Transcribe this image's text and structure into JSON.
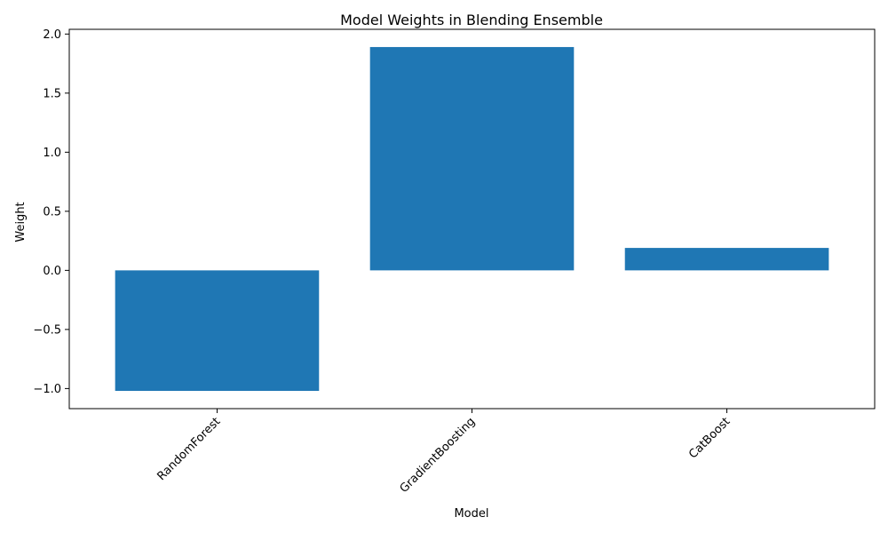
{
  "chart_data": {
    "type": "bar",
    "title": "Model Weights in Blending Ensemble",
    "xlabel": "Model",
    "ylabel": "Weight",
    "categories": [
      "RandomForest",
      "GradientBoosting",
      "CatBoost"
    ],
    "values": [
      -1.02,
      1.89,
      0.19
    ],
    "ylim": [
      -1.17,
      2.04
    ],
    "yticks": [
      -1.0,
      -0.5,
      0.0,
      0.5,
      1.0,
      1.5,
      2.0
    ],
    "ytick_labels": [
      "−1.0",
      "−0.5",
      "0.0",
      "0.5",
      "1.0",
      "1.5",
      "2.0"
    ],
    "xtick_rotation_deg": 45,
    "bar_color": "#1f77b4",
    "grid": false,
    "legend": false
  }
}
